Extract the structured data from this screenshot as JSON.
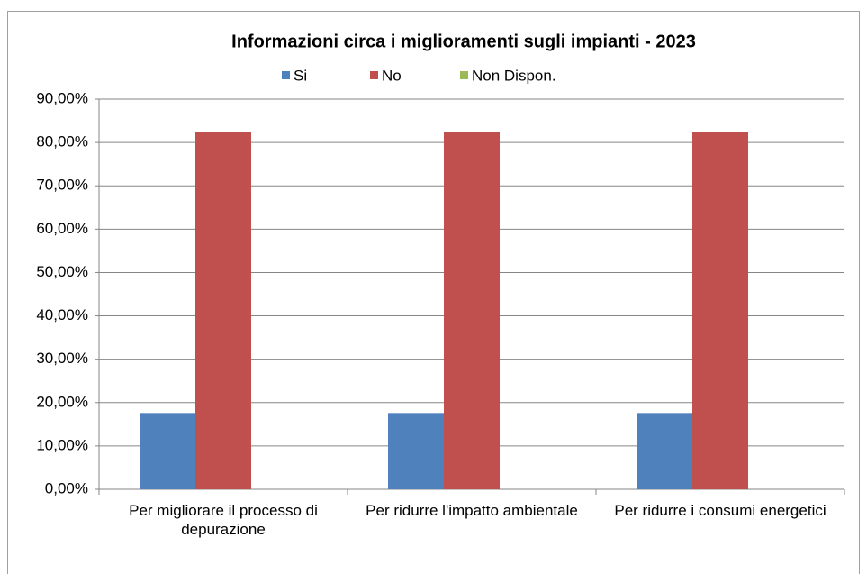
{
  "chart_data": {
    "type": "bar",
    "title": "Informazioni circa i miglioramenti sugli impianti - 2023",
    "categories": [
      "Per migliorare il processo di depurazione",
      "Per ridurre l'impatto ambientale",
      "Per ridurre i consumi energetici"
    ],
    "series": [
      {
        "name": "Si",
        "color": "#4f81bd",
        "values": [
          17.6,
          17.6,
          17.6
        ]
      },
      {
        "name": "No",
        "color": "#c0504d",
        "values": [
          82.4,
          82.4,
          82.4
        ]
      },
      {
        "name": "Non Dispon.",
        "color": "#9bbb59",
        "values": [
          0,
          0,
          0
        ]
      }
    ],
    "ylim": [
      0,
      90
    ],
    "yticks": [
      {
        "value": 0,
        "label": "0,00%"
      },
      {
        "value": 10,
        "label": "10,00%"
      },
      {
        "value": 20,
        "label": "20,00%"
      },
      {
        "value": 30,
        "label": "30,00%"
      },
      {
        "value": 40,
        "label": "40,00%"
      },
      {
        "value": 50,
        "label": "50,00%"
      },
      {
        "value": 60,
        "label": "60,00%"
      },
      {
        "value": 70,
        "label": "70,00%"
      },
      {
        "value": 80,
        "label": "80,00%"
      },
      {
        "value": 90,
        "label": "90,00%"
      }
    ],
    "grid": true,
    "legend": "top"
  }
}
